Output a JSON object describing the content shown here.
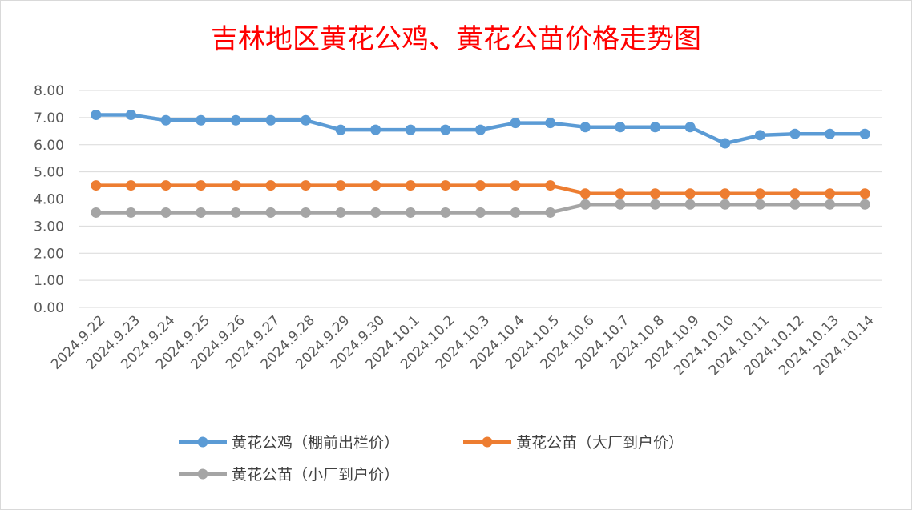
{
  "chart_data": {
    "type": "line",
    "title": "吉林地区黄花公鸡、黄花公苗价格走势图",
    "x": [
      "2024.9.22",
      "2024.9.23",
      "2024.9.24",
      "2024.9.25",
      "2024.9.26",
      "2024.9.27",
      "2024.9.28",
      "2024.9.29",
      "2024.9.30",
      "2024.10.1",
      "2024.10.2",
      "2024.10.3",
      "2024.10.4",
      "2024.10.5",
      "2024.10.6",
      "2024.10.7",
      "2024.10.8",
      "2024.10.9",
      "2024.10.10",
      "2024.10.11",
      "2024.10.12",
      "2024.10.13",
      "2024.10.14"
    ],
    "y_ticks": [
      "0.00",
      "1.00",
      "2.00",
      "3.00",
      "4.00",
      "5.00",
      "6.00",
      "7.00",
      "8.00"
    ],
    "ylim": [
      0,
      8
    ],
    "grid": true,
    "legend_position": "bottom",
    "series": [
      {
        "name": "黄花公鸡（棚前出栏价）",
        "color": "#5b9bd5",
        "values": [
          7.1,
          7.1,
          6.9,
          6.9,
          6.9,
          6.9,
          6.9,
          6.55,
          6.55,
          6.55,
          6.55,
          6.55,
          6.8,
          6.8,
          6.65,
          6.65,
          6.65,
          6.65,
          6.05,
          6.35,
          6.4,
          6.4,
          6.4
        ]
      },
      {
        "name": "黄花公苗（大厂到户价）",
        "color": "#ed7d31",
        "values": [
          4.5,
          4.5,
          4.5,
          4.5,
          4.5,
          4.5,
          4.5,
          4.5,
          4.5,
          4.5,
          4.5,
          4.5,
          4.5,
          4.5,
          4.2,
          4.2,
          4.2,
          4.2,
          4.2,
          4.2,
          4.2,
          4.2,
          4.2
        ]
      },
      {
        "name": "黄花公苗（小厂到户价）",
        "color": "#a5a5a5",
        "values": [
          3.5,
          3.5,
          3.5,
          3.5,
          3.5,
          3.5,
          3.5,
          3.5,
          3.5,
          3.5,
          3.5,
          3.5,
          3.5,
          3.5,
          3.8,
          3.8,
          3.8,
          3.8,
          3.8,
          3.8,
          3.8,
          3.8,
          3.8
        ]
      }
    ]
  }
}
